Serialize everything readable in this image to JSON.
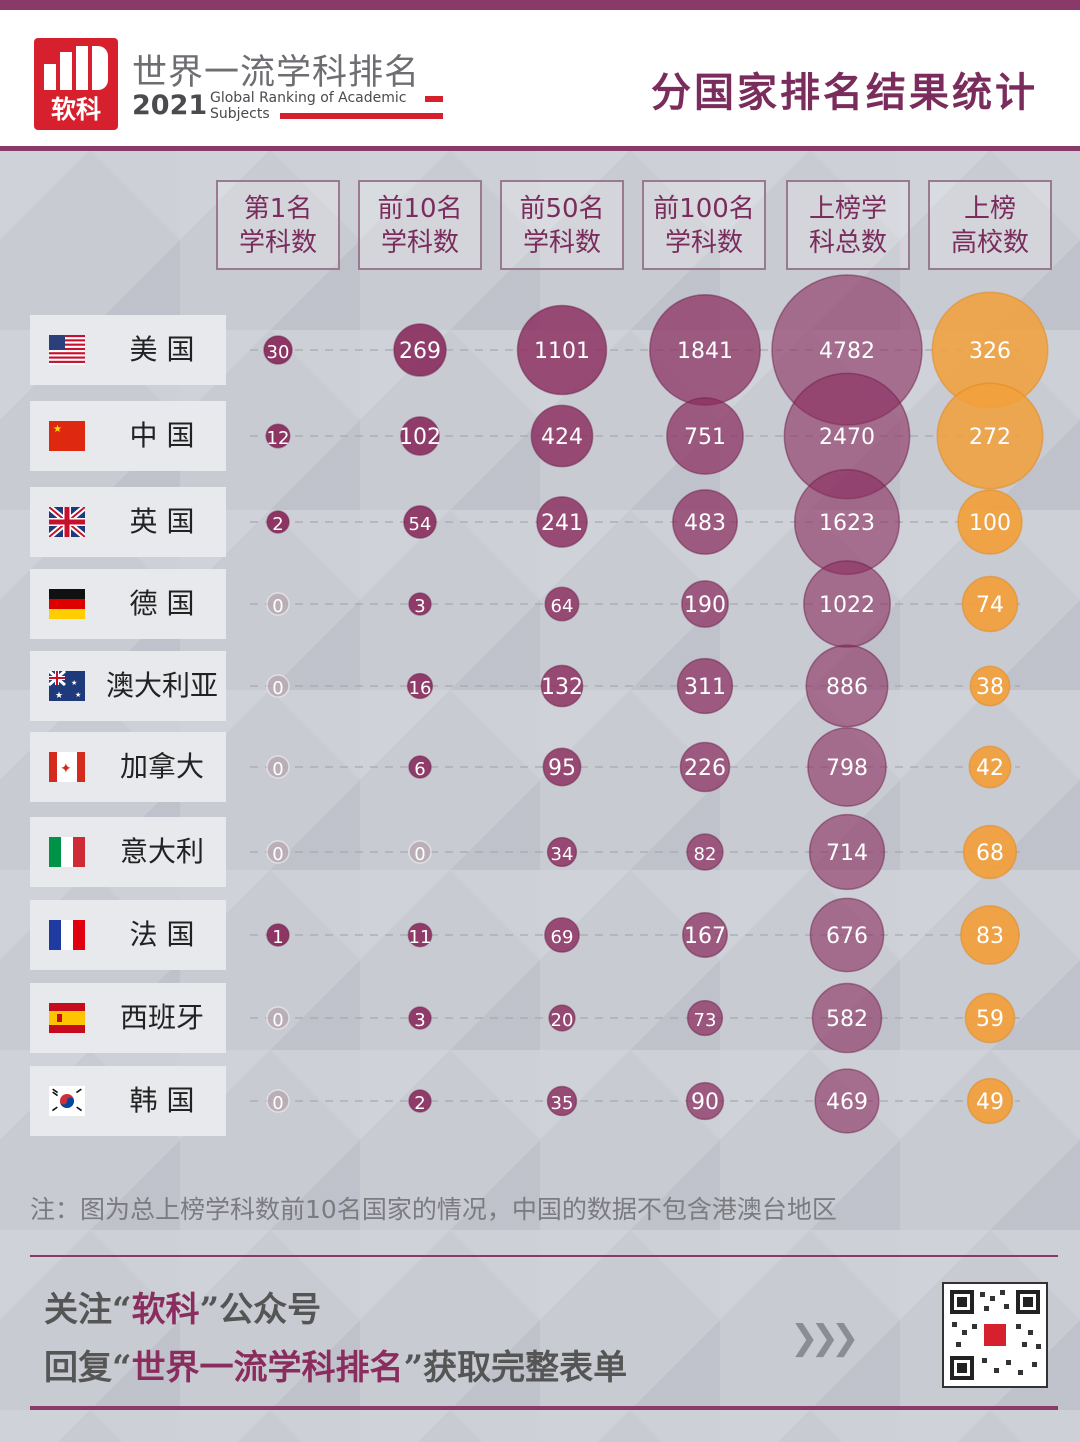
{
  "header": {
    "brand_cn": "世界一流学科排名",
    "brand_year": "2021",
    "brand_en_line1": "Global Ranking of Academic",
    "brand_en_line2": "Subjects",
    "logo_text": "软科",
    "title": "分国家排名结果统计"
  },
  "colors": {
    "purple": "#8a2c5e",
    "orange": "#f2a03a",
    "zero": "#b9aab3"
  },
  "chart_data": {
    "type": "bubble-table",
    "columns": [
      {
        "line1": "第1名",
        "line2": "学科数"
      },
      {
        "line1": "前10名",
        "line2": "学科数"
      },
      {
        "line1": "前50名",
        "line2": "学科数"
      },
      {
        "line1": "前100名",
        "line2": "学科数"
      },
      {
        "line1": "上榜学",
        "line2": "科总数"
      },
      {
        "line1": "上榜",
        "line2": "高校数"
      }
    ],
    "rows": [
      {
        "country": "美 国",
        "flag": "us",
        "values": [
          30,
          269,
          1101,
          1841,
          4782,
          326
        ]
      },
      {
        "country": "中 国",
        "flag": "cn",
        "values": [
          12,
          102,
          424,
          751,
          2470,
          272
        ]
      },
      {
        "country": "英 国",
        "flag": "uk",
        "values": [
          2,
          54,
          241,
          483,
          1623,
          100
        ]
      },
      {
        "country": "德 国",
        "flag": "de",
        "values": [
          0,
          3,
          64,
          190,
          1022,
          74
        ]
      },
      {
        "country": "澳大利亚",
        "flag": "au",
        "values": [
          0,
          16,
          132,
          311,
          886,
          38
        ]
      },
      {
        "country": "加拿大",
        "flag": "ca",
        "values": [
          0,
          6,
          95,
          226,
          798,
          42
        ]
      },
      {
        "country": "意大利",
        "flag": "it",
        "values": [
          0,
          0,
          34,
          82,
          714,
          68
        ]
      },
      {
        "country": "法 国",
        "flag": "fr",
        "values": [
          1,
          11,
          69,
          167,
          676,
          83
        ]
      },
      {
        "country": "西班牙",
        "flag": "es",
        "values": [
          0,
          3,
          20,
          73,
          582,
          59
        ]
      },
      {
        "country": "韩 国",
        "flag": "kr",
        "values": [
          0,
          2,
          35,
          90,
          469,
          49
        ]
      }
    ]
  },
  "note": "注：图为总上榜学科数前10名国家的情况，中国的数据不包含港澳台地区",
  "footer": {
    "l1_pre": "关注“",
    "l1_hl": "软科",
    "l1_post": "”公众号",
    "l2_pre": "回复“",
    "l2_hl": "世界一流学科排名",
    "l2_post": "”获取完整表单"
  }
}
